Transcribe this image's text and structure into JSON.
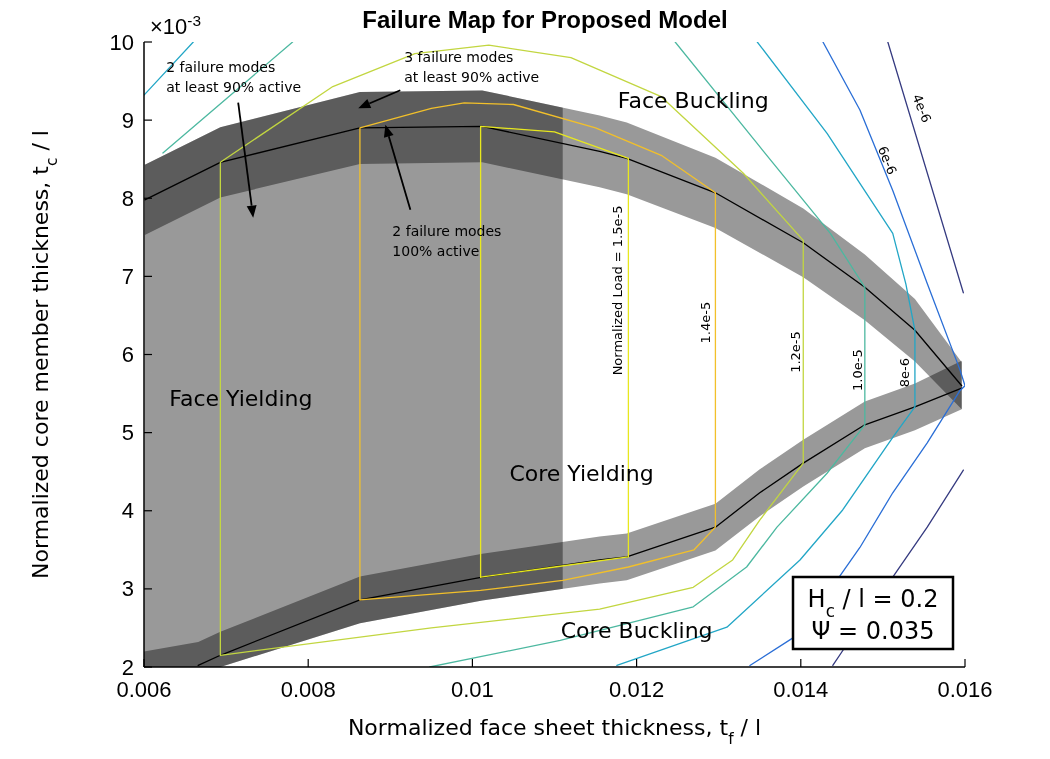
{
  "chart_data": {
    "type": "line",
    "title": "Failure Map for Proposed Model",
    "xlabel": "Normalized face sheet thickness, t$_{f}$ / l",
    "ylabel": "Normalized core member thickness, t$_{c}$ / l",
    "xlim": [
      0.006,
      0.016
    ],
    "ylim": [
      2,
      10
    ],
    "xticks": [
      0.006,
      0.008,
      0.01,
      0.012,
      0.014,
      0.016
    ],
    "yticks": [
      2,
      3,
      4,
      5,
      6,
      7,
      8,
      9,
      10
    ],
    "bands": [
      {
        "axis": "x",
        "from": 0.006,
        "to": 0.0111,
        "label": "Face Yielding",
        "color": "#999999"
      }
    ],
    "series": [
      {
        "color": "#000000",
        "x": [
          0.006,
          0.00666,
          0.00693,
          0.00863,
          0.01012,
          0.01155,
          0.01188,
          0.01296,
          0.0135,
          0.01403,
          0.01478,
          0.01539,
          0.01596
        ],
        "values": [
          null,
          2.02,
          2.15,
          2.86,
          3.15,
          3.37,
          3.41,
          3.79,
          4.23,
          4.61,
          5.1,
          5.33,
          5.57
        ],
        "lower": [
          2.0,
          2.0,
          2.0,
          2.56,
          2.85,
          3.07,
          3.11,
          3.49,
          3.93,
          4.31,
          4.8,
          5.03,
          5.3
        ],
        "upper": [
          2.2,
          2.32,
          2.45,
          3.16,
          3.45,
          3.67,
          3.71,
          4.09,
          4.53,
          4.91,
          5.4,
          5.63,
          5.92
        ]
      },
      {
        "color": "#000000",
        "x": [
          0.00601,
          0.00693,
          0.00863,
          0.01012,
          0.01155,
          0.01188,
          0.01296,
          0.01403,
          0.01478,
          0.01539,
          0.01596
        ],
        "values": [
          7.98,
          8.46,
          8.9,
          8.92,
          8.6,
          8.51,
          8.07,
          7.43,
          6.86,
          6.31,
          5.6
        ],
        "lower": [
          7.53,
          8.01,
          8.44,
          8.46,
          8.14,
          8.05,
          7.62,
          6.99,
          6.44,
          5.91,
          5.3
        ],
        "upper": [
          8.43,
          8.91,
          9.36,
          9.38,
          9.06,
          8.97,
          8.52,
          7.87,
          7.28,
          6.71,
          5.9
        ]
      },
      {
        "color": "#e8e81e",
        "x": [
          0.0101,
          0.0101,
          0.011,
          0.0119
        ],
        "values": [
          3.15,
          8.92,
          8.85,
          8.51
        ]
      },
      {
        "color": "#e8e81e",
        "x": [
          0.0119,
          0.0119,
          0.011,
          0.0101
        ],
        "values": [
          8.51,
          3.41,
          3.28,
          3.15
        ]
      },
      {
        "color": "#f2c02a",
        "x": [
          0.00863,
          0.00863,
          0.0095,
          0.0099,
          0.0105,
          0.0115,
          0.0123,
          0.01296
        ],
        "values": [
          2.86,
          8.9,
          9.15,
          9.22,
          9.2,
          8.9,
          8.55,
          8.07
        ]
      },
      {
        "color": "#f2c02a",
        "x": [
          0.01296,
          0.01296,
          0.0127,
          0.0119,
          0.0111,
          0.0101,
          0.00863
        ],
        "values": [
          8.07,
          3.79,
          3.5,
          3.28,
          3.11,
          2.98,
          2.86
        ]
      },
      {
        "color": "#c2d640",
        "x": [
          0.00693,
          0.00693,
          0.0083,
          0.0093,
          0.0102,
          0.0112,
          0.0123,
          0.0133,
          0.01403
        ],
        "values": [
          2.15,
          8.46,
          9.43,
          9.85,
          9.96,
          9.8,
          9.3,
          8.32,
          7.46
        ]
      },
      {
        "color": "#c2d640",
        "x": [
          0.01403,
          0.01403,
          0.0135,
          0.01317,
          0.01269,
          0.01155,
          0.0095,
          0.00693
        ],
        "values": [
          7.46,
          4.61,
          3.88,
          3.37,
          3.02,
          2.74,
          2.5,
          2.15
        ]
      },
      {
        "color": "#4cb8a0",
        "x": [
          0.00623,
          0.00781
        ],
        "values": [
          8.58,
          10
        ]
      },
      {
        "color": "#4cb8a0",
        "x": [
          0.01247,
          0.0135,
          0.01436,
          0.01478,
          0.01478,
          0.01432,
          0.01371,
          0.01334,
          0.01269,
          0.01107,
          0.00948
        ],
        "values": [
          10,
          8.66,
          7.55,
          6.86,
          5.1,
          4.48,
          3.79,
          3.28,
          2.77,
          2.34,
          2.0
        ]
      },
      {
        "color": "#22a6c6",
        "x": [
          0.006,
          0.0066
        ],
        "values": [
          9.32,
          10
        ]
      },
      {
        "color": "#22a6c6",
        "x": [
          0.01347,
          0.01432,
          0.01512,
          0.01528,
          0.01539,
          0.01539,
          0.01512,
          0.01451,
          0.01399,
          0.0131,
          0.01176
        ],
        "values": [
          10,
          8.83,
          7.55,
          6.9,
          6.31,
          5.33,
          4.94,
          4.01,
          3.37,
          2.51,
          2.02
        ]
      },
      {
        "color": "#2a6ed6",
        "x": [
          0.01427,
          0.01472,
          0.01512,
          0.01554,
          0.01594,
          0.016,
          0.01594,
          0.01554,
          0.01512,
          0.01472,
          0.01446
        ],
        "values": [
          10,
          9.13,
          8.1,
          6.91,
          5.8,
          5.6,
          5.54,
          4.87,
          4.23,
          3.53,
          3.14
        ]
      },
      {
        "color": "#2a6ed6",
        "x": [
          0.0139,
          0.01338
        ],
        "values": [
          2.37,
          2.02
        ]
      },
      {
        "color": "#353a80",
        "x": [
          0.01506,
          0.01598
        ],
        "values": [
          10,
          6.79
        ]
      },
      {
        "color": "#353a80",
        "x": [
          0.01598,
          0.01554,
          0.01512
        ],
        "values": [
          4.52,
          3.79,
          3.15
        ]
      },
      {
        "color": "#353a80",
        "x": [
          0.01453,
          0.01439
        ],
        "values": [
          2.24,
          2.02
        ]
      }
    ],
    "annotations": [
      "×10$^{-3}$",
      "Face Buckling",
      "Core Yielding",
      "Core Buckling",
      "H$_{c}$ / l = 0.2\nΨ = 0.035",
      "2 failure modes\nat least 90% active",
      "3 failure modes\nat least 90% active",
      "2 failure modes\n100% active",
      "Normalized Load = 1.5e-5",
      "1.4e-5",
      "1.2e-5",
      "1.0e-5",
      "8e-6",
      "6e-6",
      "4e-6"
    ]
  }
}
